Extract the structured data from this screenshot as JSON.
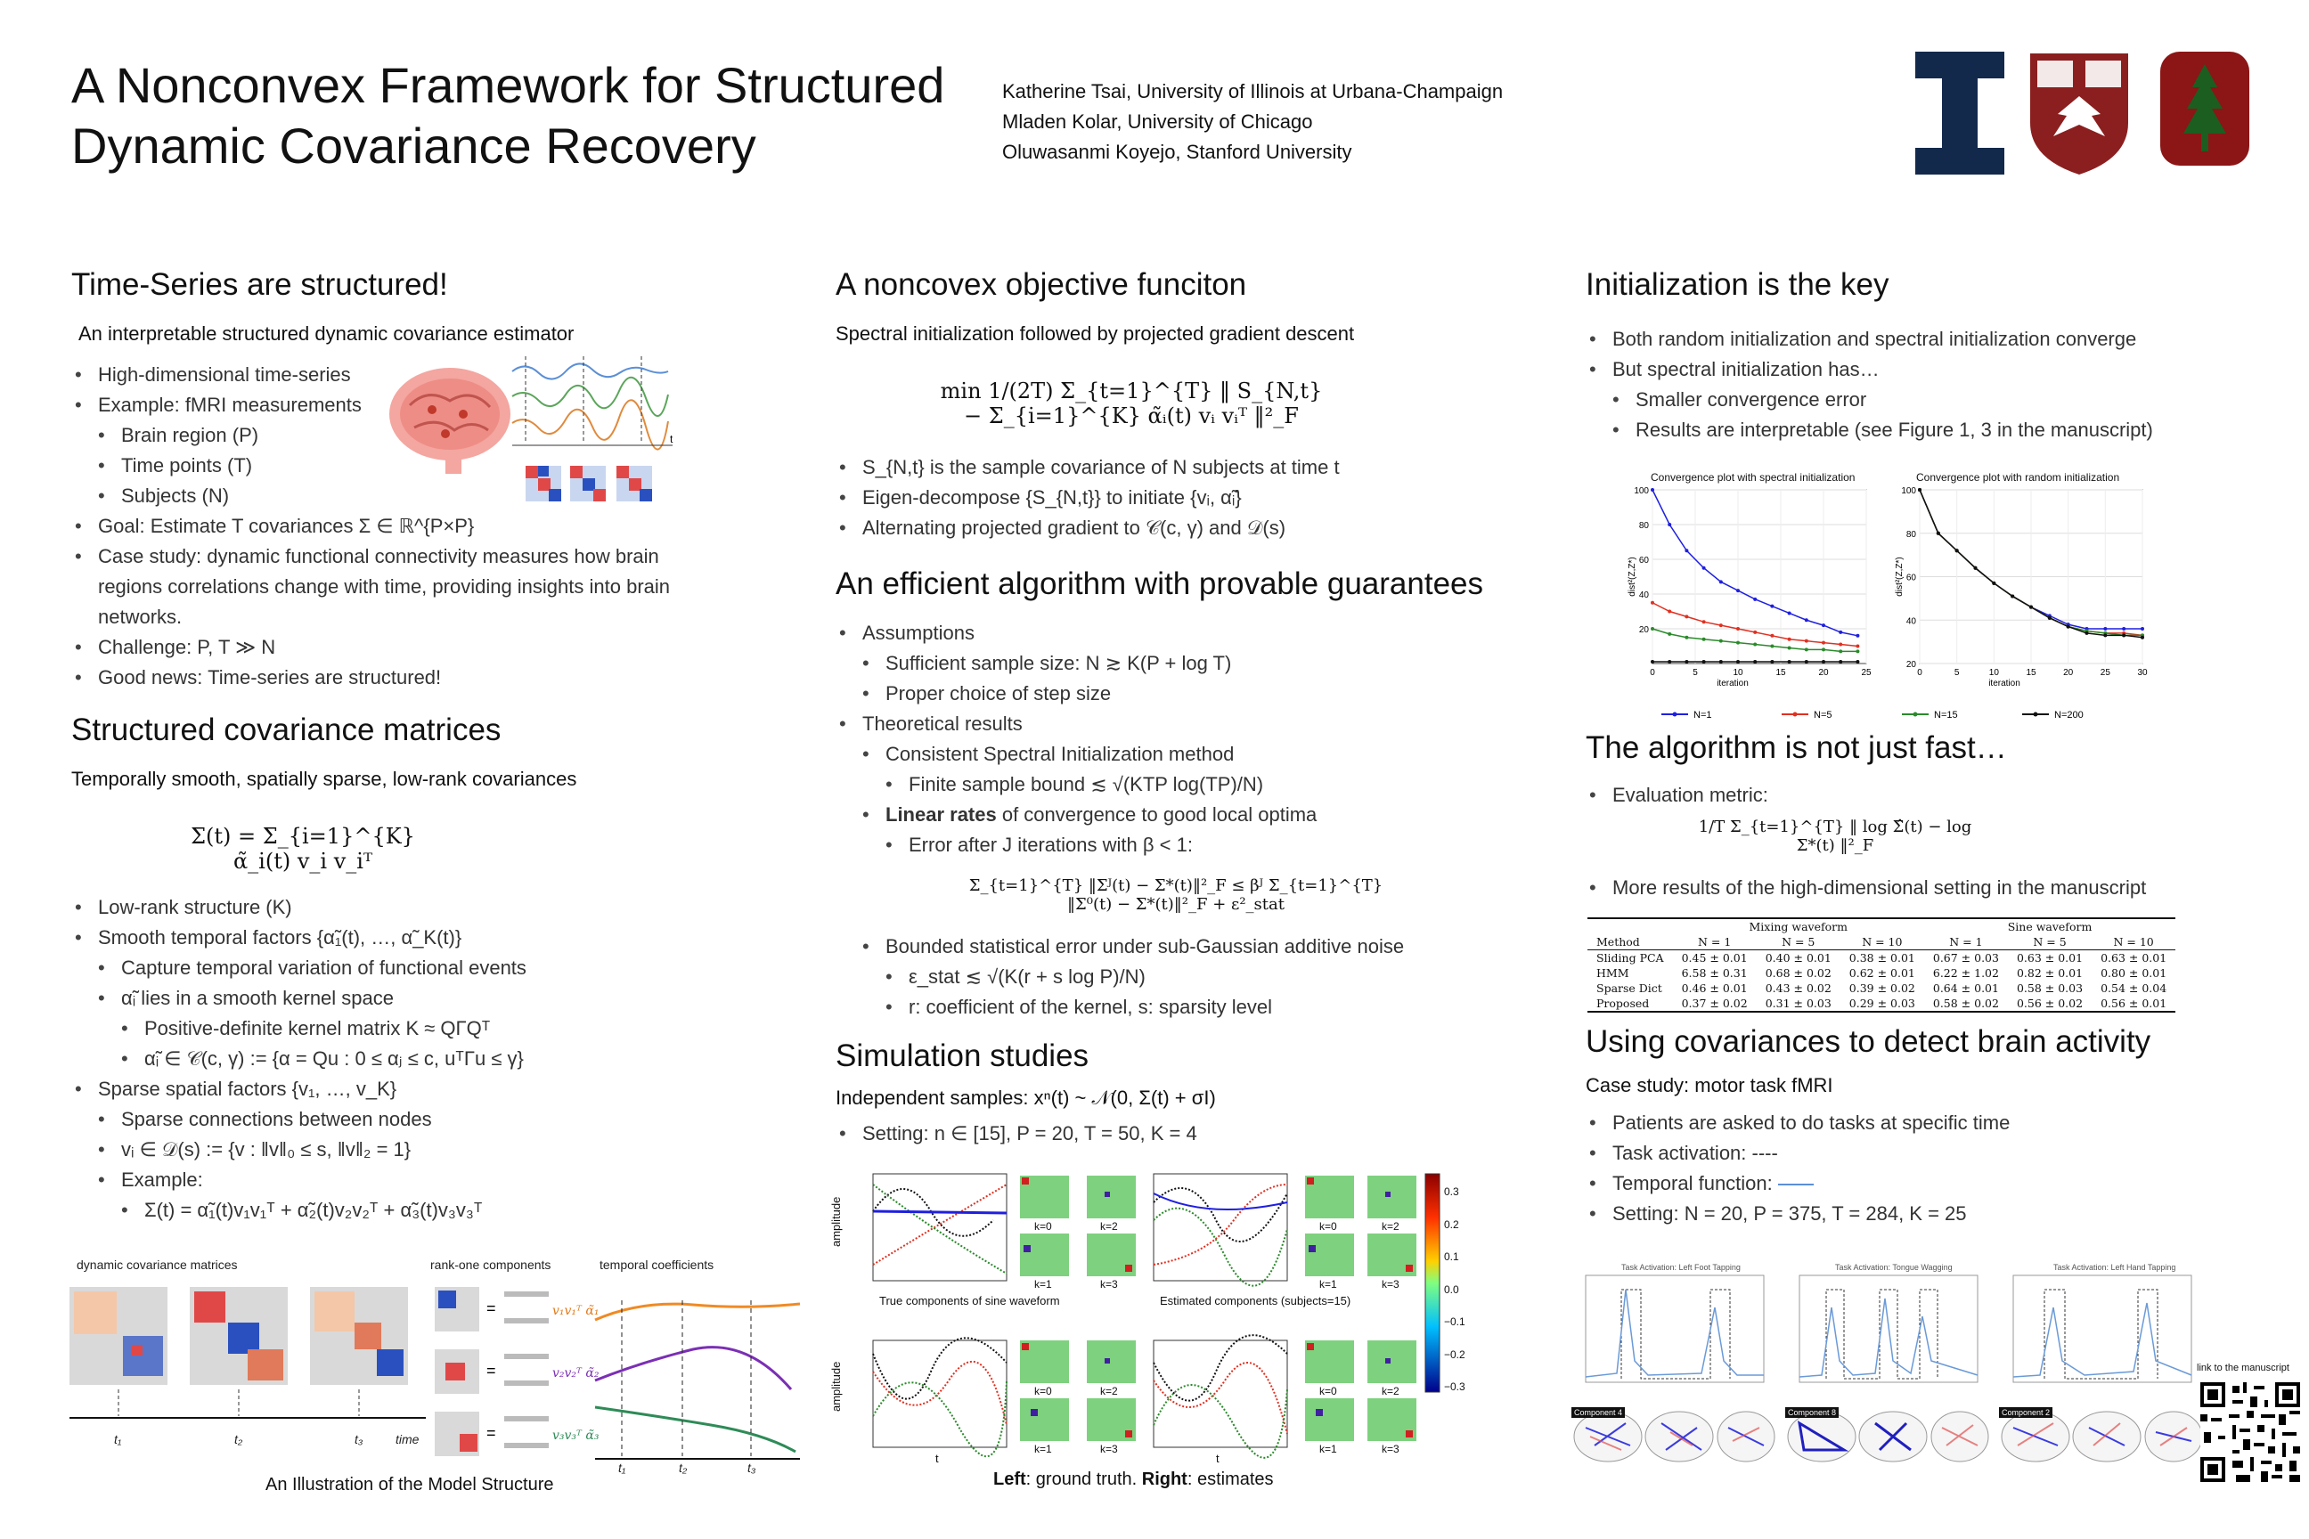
{
  "header": {
    "title_line1": "A Nonconvex Framework for Structured",
    "title_line2": "Dynamic Covariance Recovery",
    "authors": [
      "Katherine Tsai, University of Illinois at Urbana-Champaign",
      "Mladen Kolar, University of Chicago",
      "Oluwasanmi Koyejo, Stanford University"
    ],
    "logos": [
      "illinois-logo",
      "uchicago-seal",
      "stanford-logo"
    ]
  },
  "col1": {
    "s1_title": "Time-Series are structured!",
    "s1_sub": "An interpretable structured dynamic covariance estimator",
    "s1_items": [
      "High-dimensional time-series",
      "Example: fMRI measurements",
      "Brain region (P)",
      "Time points (T)",
      "Subjects (N)",
      "Goal: Estimate T covariances Σ ∈ ℝ^{P×P}",
      "Case study: dynamic functional connectivity measures how brain",
      "regions correlations change with time, providing insights into brain",
      "networks.",
      "Challenge: P, T ≫ N",
      "Good news: Time-series are structured!"
    ],
    "s2_title": "Structured covariance matrices",
    "s2_sub": "Temporally smooth, spatially sparse, low-rank covariances",
    "s2_eq": "Σ(t) = Σ_{i=1}^{K} α̃_i(t) v_i v_iᵀ",
    "s2_items": [
      "Low-rank structure (K)",
      "Smooth temporal factors {α̃₁(t), …, α̃_K(t)}",
      "Capture temporal variation of functional events",
      "α̃ᵢ lies in a smooth kernel space",
      "Positive-definite kernel matrix K ≈ QΓQᵀ",
      "α̃ᵢ ∈ 𝒞(c, γ) := {α = Qu : 0 ≤ αⱼ ≤ c, uᵀΓu ≤ γ}",
      "Sparse spatial factors {v₁, …, v_K}",
      "Sparse connections between nodes",
      "vᵢ ∈ 𝒟(s) := {v : ‖v‖₀ ≤ s, ‖v‖₂ = 1}",
      "Example:",
      "Σ(t) = α̃₁(t)v₁v₁ᵀ + α̃₂(t)v₂v₂ᵀ + α̃₃(t)v₃v₃ᵀ"
    ],
    "fig_dyn_label": "dynamic covariance matrices",
    "fig_rank_label": "rank-one components",
    "fig_temp_label": "temporal coefficients",
    "fig_time": "time",
    "fig_t1": "t₁",
    "fig_t2": "t₂",
    "fig_t3": "t₃",
    "fig_comp1": "v₁v₁ᵀ  α̃₁",
    "fig_comp2": "v₂v₂ᵀ  α̃₂",
    "fig_comp3": "v₃v₃ᵀ  α̃₃",
    "fig_caption": "An Illustration of the Model Structure"
  },
  "col2": {
    "s1_title": "A noncovex objective funciton",
    "s1_sub": "Spectral initialization followed by projected gradient descent",
    "s1_eq_min": "min",
    "s1_eq": "1/(2T) Σ_{t=1}^{T} ‖ S_{N,t} − Σ_{i=1}^{K} α̃ᵢ(t) vᵢ vᵢᵀ ‖²_F",
    "s1_items": [
      "S_{N,t} is the sample covariance of N subjects at time t",
      "Eigen-decompose {S_{N,t}} to initiate {vᵢ, α̃ᵢ}",
      "Alternating projected gradient to 𝒞(c, γ) and 𝒟(s)"
    ],
    "s2_title": "An efficient algorithm with provable guarantees",
    "s2_items": [
      "Assumptions",
      "Sufficient sample size: N ≳ K(P + log T)",
      "Proper choice of step size",
      "Theoretical results",
      "Consistent Spectral Initialization method",
      "Finite sample bound  ≲ √(KTP log(TP)/N)",
      "Linear rates",
      " of convergence to good local optima",
      "Error after J iterations with β < 1:",
      "Σ_{t=1}^{T} ‖Σᴶ(t) − Σ*(t)‖²_F ≤ βᴶ Σ_{t=1}^{T} ‖Σ⁰(t) − Σ*(t)‖²_F + ε²_stat",
      "Bounded statistical error under sub-Gaussian additive noise",
      "ε_stat ≲ √(K(r + s log P)/N)",
      "r: coefficient of the kernel, s: sparsity level"
    ],
    "s3_title": "Simulation studies",
    "s3_sub": "Independent samples: xⁿ(t) ~ 𝒩(0, Σ(t) + σI)",
    "s3_setting": "Setting: n ∈ [15], P = 20, T = 50, K = 4",
    "sim_ylabel": "amplitude",
    "sim_xlabel": "t",
    "sim_cap_true": "True components of sine waveform",
    "sim_cap_est": "Estimated components (subjects=15)",
    "sim_k_labels": [
      "k=0",
      "k=2",
      "k=1",
      "k=3"
    ],
    "sim_colorbar": [
      "0.3",
      "0.2",
      "0.1",
      "0.0",
      "−0.1",
      "−0.2",
      "−0.3"
    ],
    "caption_left": "Left",
    "caption_mid": ": ground truth. ",
    "caption_right": "Right",
    "caption_end": ": estimates"
  },
  "col3": {
    "s1_title": "Initialization is the key",
    "s1_items": [
      "Both random initialization and spectral initialization converge",
      "But spectral initialization has…",
      "Smaller convergence error",
      "Results are interpretable (see Figure 1, 3 in the manuscript)"
    ],
    "s2_title": "The algorithm is not just fast…",
    "s2_items": [
      "Evaluation metric:",
      "More results of the high-dimensional setting in the manuscript"
    ],
    "s2_eq": "1/T Σ_{t=1}^{T} ‖ log Σ̂(t) − log Σ*(t) ‖²_F",
    "s3_title": "Using covariances to detect brain activity",
    "s3_sub": "Case study: motor task fMRI",
    "s3_items": [
      "Patients are asked to do tasks at specific time",
      "Task activation:  ----",
      "Temporal function:",
      "Setting: N = 20, P = 375, T = 284, K = 25"
    ],
    "qr_label": "link to the manuscript",
    "task_titles": [
      "Task Activation: Left Foot Tapping",
      "Task Activation: Tongue Wagging",
      "Task Activation: Left Hand Tapping"
    ],
    "component_labels": [
      "Component 4",
      "Component 8",
      "Component 2"
    ]
  },
  "table": {
    "group_headers": [
      "Mixing waveform",
      "Sine waveform"
    ],
    "columns": [
      "Method",
      "N = 1",
      "N = 5",
      "N = 10",
      "N = 1",
      "N = 5",
      "N = 10"
    ],
    "rows": [
      [
        "Sliding PCA",
        "0.45 ± 0.01",
        "0.40 ± 0.01",
        "0.38 ± 0.01",
        "0.67 ± 0.03",
        "0.63 ± 0.01",
        "0.63 ± 0.01"
      ],
      [
        "HMM",
        "6.58 ± 0.31",
        "0.68 ± 0.02",
        "0.62 ± 0.01",
        "6.22 ± 1.02",
        "0.82 ± 0.01",
        "0.80 ± 0.01"
      ],
      [
        "Sparse Dict",
        "0.46 ± 0.01",
        "0.43 ± 0.02",
        "0.39 ± 0.02",
        "0.64 ± 0.01",
        "0.58 ± 0.03",
        "0.54 ± 0.04"
      ],
      [
        "Proposed",
        "0.37 ± 0.02",
        "0.31 ± 0.03",
        "0.29 ± 0.03",
        "0.58 ± 0.02",
        "0.56 ± 0.02",
        "0.56 ± 0.01"
      ]
    ]
  },
  "chart_data": [
    {
      "type": "line",
      "title": "Convergence plot with spectral initialization",
      "xlabel": "iteration",
      "ylabel": "dist²(Z,Z*)",
      "xlim": [
        0,
        25
      ],
      "ylim": [
        0,
        100
      ],
      "x": [
        0,
        2,
        4,
        6,
        8,
        10,
        12,
        14,
        16,
        18,
        20,
        22,
        24
      ],
      "series": [
        {
          "name": "N=1",
          "color": "#1f1fe0",
          "values": [
            100,
            80,
            65,
            55,
            47,
            42,
            37,
            33,
            29,
            25,
            22,
            18,
            16
          ]
        },
        {
          "name": "N=5",
          "color": "#e03020",
          "values": [
            35,
            30,
            27,
            24,
            22,
            20,
            18,
            16,
            14,
            13,
            12,
            11,
            10
          ]
        },
        {
          "name": "N=15",
          "color": "#2a8a2a",
          "values": [
            20,
            17,
            15,
            14,
            13,
            12,
            11,
            10,
            9,
            8,
            8,
            7,
            7
          ]
        },
        {
          "name": "N=200",
          "color": "#111111",
          "values": [
            1,
            1,
            1,
            1,
            1,
            1,
            1,
            1,
            1,
            1,
            1,
            1,
            1
          ]
        }
      ],
      "legend": "bottom"
    },
    {
      "type": "line",
      "title": "Convergence plot with random initialization",
      "xlabel": "iteration",
      "ylabel": "dist²(Z,Z*)",
      "xlim": [
        0,
        30
      ],
      "ylim": [
        20,
        100
      ],
      "x": [
        0,
        2.5,
        5,
        7.5,
        10,
        12.5,
        15,
        17.5,
        20,
        22.5,
        25,
        27.5,
        30
      ],
      "series": [
        {
          "name": "N=1",
          "color": "#1f1fe0",
          "values": [
            100,
            80,
            72,
            64,
            57,
            51,
            46,
            42,
            38,
            36,
            36,
            36,
            36
          ]
        },
        {
          "name": "N=5",
          "color": "#e03020",
          "values": [
            100,
            80,
            72,
            64,
            57,
            51,
            46,
            41,
            37,
            35,
            34,
            34,
            33
          ]
        },
        {
          "name": "N=15",
          "color": "#2a8a2a",
          "values": [
            100,
            80,
            72,
            64,
            57,
            51,
            46,
            41,
            37,
            35,
            34,
            33,
            33
          ]
        },
        {
          "name": "N=200",
          "color": "#111111",
          "values": [
            100,
            80,
            72,
            64,
            57,
            51,
            46,
            41,
            37,
            34,
            33,
            33,
            32
          ]
        }
      ],
      "legend": "bottom"
    }
  ]
}
